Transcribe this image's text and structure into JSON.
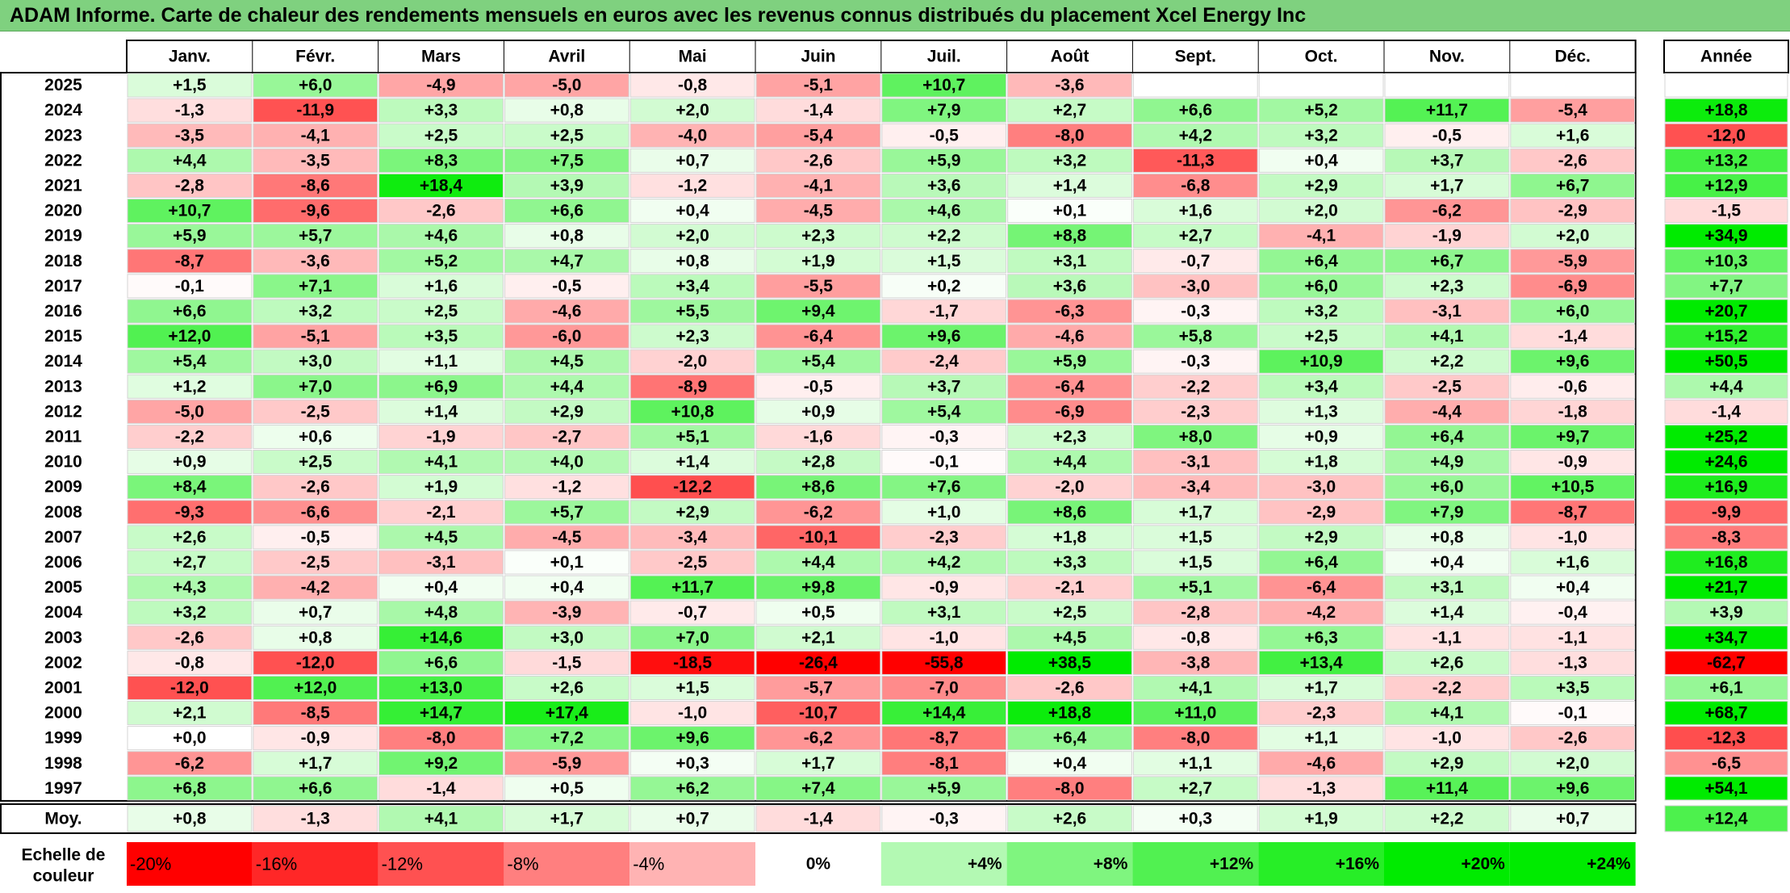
{
  "title": "ADAM Informe. Carte de chaleur des rendements mensuels en euros avec les revenus connus distribués du placement Xcel Energy Inc",
  "chart_data": {
    "type": "heatmap",
    "title": "ADAM Informe. Carte de chaleur des rendements mensuels en euros avec les revenus connus distribués du placement Xcel Energy Inc",
    "months": [
      "Janv.",
      "Févr.",
      "Mars",
      "Avril",
      "Mai",
      "Juin",
      "Juil.",
      "Août",
      "Sept.",
      "Oct.",
      "Nov.",
      "Déc."
    ],
    "year_header": "Année",
    "rows": [
      {
        "year": "2025",
        "values": [
          1.5,
          6.0,
          -4.9,
          -5.0,
          -0.8,
          -5.1,
          10.7,
          -3.6,
          null,
          null,
          null,
          null
        ],
        "annual": null
      },
      {
        "year": "2024",
        "values": [
          -1.3,
          -11.9,
          3.3,
          0.8,
          2.0,
          -1.4,
          7.9,
          2.7,
          6.6,
          5.2,
          11.7,
          -5.4
        ],
        "annual": 18.8
      },
      {
        "year": "2023",
        "values": [
          -3.5,
          -4.1,
          2.5,
          2.5,
          -4.0,
          -5.4,
          -0.5,
          -8.0,
          4.2,
          3.2,
          -0.5,
          1.6
        ],
        "annual": -12.0
      },
      {
        "year": "2022",
        "values": [
          4.4,
          -3.5,
          8.3,
          7.5,
          0.7,
          -2.6,
          5.9,
          3.2,
          -11.3,
          0.4,
          3.7,
          -2.6
        ],
        "annual": 13.2
      },
      {
        "year": "2021",
        "values": [
          -2.8,
          -8.6,
          18.4,
          3.9,
          -1.2,
          -4.1,
          3.6,
          1.4,
          -6.8,
          2.9,
          1.7,
          6.7
        ],
        "annual": 12.9
      },
      {
        "year": "2020",
        "values": [
          10.7,
          -9.6,
          -2.6,
          6.6,
          0.4,
          -4.5,
          4.6,
          0.1,
          1.6,
          2.0,
          -6.2,
          -2.9
        ],
        "annual": -1.5
      },
      {
        "year": "2019",
        "values": [
          5.9,
          5.7,
          4.6,
          0.8,
          2.0,
          2.3,
          2.2,
          8.8,
          2.7,
          -4.1,
          -1.9,
          2.0
        ],
        "annual": 34.9
      },
      {
        "year": "2018",
        "values": [
          -8.7,
          -3.6,
          5.2,
          4.7,
          0.8,
          1.9,
          1.5,
          3.1,
          -0.7,
          6.4,
          6.7,
          -5.9
        ],
        "annual": 10.3
      },
      {
        "year": "2017",
        "values": [
          -0.1,
          7.1,
          1.6,
          -0.5,
          3.4,
          -5.5,
          0.2,
          3.6,
          -3.0,
          6.0,
          2.3,
          -6.9
        ],
        "annual": 7.7
      },
      {
        "year": "2016",
        "values": [
          6.6,
          3.2,
          2.5,
          -4.6,
          5.5,
          9.4,
          -1.7,
          -6.3,
          -0.3,
          3.2,
          -3.1,
          6.0
        ],
        "annual": 20.7
      },
      {
        "year": "2015",
        "values": [
          12.0,
          -5.1,
          3.5,
          -6.0,
          2.3,
          -6.4,
          9.6,
          -4.6,
          5.8,
          2.5,
          4.1,
          -1.4
        ],
        "annual": 15.2
      },
      {
        "year": "2014",
        "values": [
          5.4,
          3.0,
          1.1,
          4.5,
          -2.0,
          5.4,
          -2.4,
          5.9,
          -0.3,
          10.9,
          2.2,
          9.6
        ],
        "annual": 50.5
      },
      {
        "year": "2013",
        "values": [
          1.2,
          7.0,
          6.9,
          4.4,
          -8.9,
          -0.5,
          3.7,
          -6.4,
          -2.2,
          3.4,
          -2.5,
          -0.6
        ],
        "annual": 4.4
      },
      {
        "year": "2012",
        "values": [
          -5.0,
          -2.5,
          1.4,
          2.9,
          10.8,
          0.9,
          5.4,
          -6.9,
          -2.3,
          1.3,
          -4.4,
          -1.8
        ],
        "annual": -1.4
      },
      {
        "year": "2011",
        "values": [
          -2.2,
          0.6,
          -1.9,
          -2.7,
          5.1,
          -1.6,
          -0.3,
          2.3,
          8.0,
          0.9,
          6.4,
          9.7
        ],
        "annual": 25.2
      },
      {
        "year": "2010",
        "values": [
          0.9,
          2.5,
          4.1,
          4.0,
          1.4,
          2.8,
          -0.1,
          4.4,
          -3.1,
          1.8,
          4.9,
          -0.9
        ],
        "annual": 24.6
      },
      {
        "year": "2009",
        "values": [
          8.4,
          -2.6,
          1.9,
          -1.2,
          -12.2,
          8.6,
          7.6,
          -2.0,
          -3.4,
          -3.0,
          6.0,
          10.5
        ],
        "annual": 16.9
      },
      {
        "year": "2008",
        "values": [
          -9.3,
          -6.6,
          -2.1,
          5.7,
          2.9,
          -6.2,
          1.0,
          8.6,
          1.7,
          -2.9,
          7.9,
          -8.7
        ],
        "annual": -9.9
      },
      {
        "year": "2007",
        "values": [
          2.6,
          -0.5,
          4.5,
          -4.5,
          -3.4,
          -10.1,
          -2.3,
          1.8,
          1.5,
          2.9,
          0.8,
          -1.0
        ],
        "annual": -8.3
      },
      {
        "year": "2006",
        "values": [
          2.7,
          -2.5,
          -3.1,
          0.1,
          -2.5,
          4.4,
          4.2,
          3.3,
          1.5,
          6.4,
          0.4,
          1.6
        ],
        "annual": 16.8
      },
      {
        "year": "2005",
        "values": [
          4.3,
          -4.2,
          0.4,
          0.4,
          11.7,
          9.8,
          -0.9,
          -2.1,
          5.1,
          -6.4,
          3.1,
          0.4
        ],
        "annual": 21.7
      },
      {
        "year": "2004",
        "values": [
          3.2,
          0.7,
          4.8,
          -3.9,
          -0.7,
          0.5,
          3.1,
          2.5,
          -2.8,
          -4.2,
          1.4,
          -0.4
        ],
        "annual": 3.9
      },
      {
        "year": "2003",
        "values": [
          -2.6,
          0.8,
          14.6,
          3.0,
          7.0,
          2.1,
          -1.0,
          4.5,
          -0.8,
          6.3,
          -1.1,
          -1.1
        ],
        "annual": 34.7
      },
      {
        "year": "2002",
        "values": [
          -0.8,
          -12.0,
          6.6,
          -1.5,
          -18.5,
          -26.4,
          -55.8,
          38.5,
          -3.8,
          13.4,
          2.6,
          -1.3
        ],
        "annual": -62.7
      },
      {
        "year": "2001",
        "values": [
          -12.0,
          12.0,
          13.0,
          2.6,
          1.5,
          -5.7,
          -7.0,
          -2.6,
          4.1,
          1.7,
          -2.2,
          3.5
        ],
        "annual": 6.1
      },
      {
        "year": "2000",
        "values": [
          2.1,
          -8.5,
          14.7,
          17.4,
          -1.0,
          -10.7,
          14.4,
          18.8,
          11.0,
          -2.3,
          4.1,
          -0.1
        ],
        "annual": 68.7
      },
      {
        "year": "1999",
        "values": [
          0.0,
          -0.9,
          -8.0,
          7.2,
          9.6,
          -6.2,
          -8.7,
          6.4,
          -8.0,
          1.1,
          -1.0,
          -2.6
        ],
        "annual": -12.3
      },
      {
        "year": "1998",
        "values": [
          -6.2,
          1.7,
          9.2,
          -5.9,
          0.3,
          1.7,
          -8.1,
          0.4,
          1.1,
          -4.6,
          2.9,
          2.0
        ],
        "annual": -6.5
      },
      {
        "year": "1997",
        "values": [
          6.8,
          6.6,
          -1.4,
          0.5,
          6.2,
          7.4,
          5.9,
          -8.0,
          2.7,
          -1.3,
          11.4,
          9.6
        ],
        "annual": 54.1
      }
    ],
    "average": {
      "label": "Moy.",
      "values": [
        0.8,
        -1.3,
        4.1,
        1.7,
        0.7,
        -1.4,
        -0.3,
        2.6,
        0.3,
        1.9,
        2.2,
        0.7
      ],
      "annual": 12.4
    },
    "scale": {
      "label_line1": "Echelle de",
      "label_line2": "couleur",
      "stops": [
        "-20%",
        "-16%",
        "-12%",
        "-8%",
        "-4%",
        "0%",
        "+4%",
        "+8%",
        "+12%",
        "+16%",
        "+20%",
        "+24%"
      ],
      "stop_values": [
        -20,
        -16,
        -12,
        -8,
        -4,
        0,
        4,
        8,
        12,
        16,
        20,
        24
      ]
    },
    "colors": {
      "negative_max": "#ff0000",
      "neutral": "#ffffff",
      "positive_max": "#00e600",
      "title_bar": "#7fd17f"
    }
  }
}
